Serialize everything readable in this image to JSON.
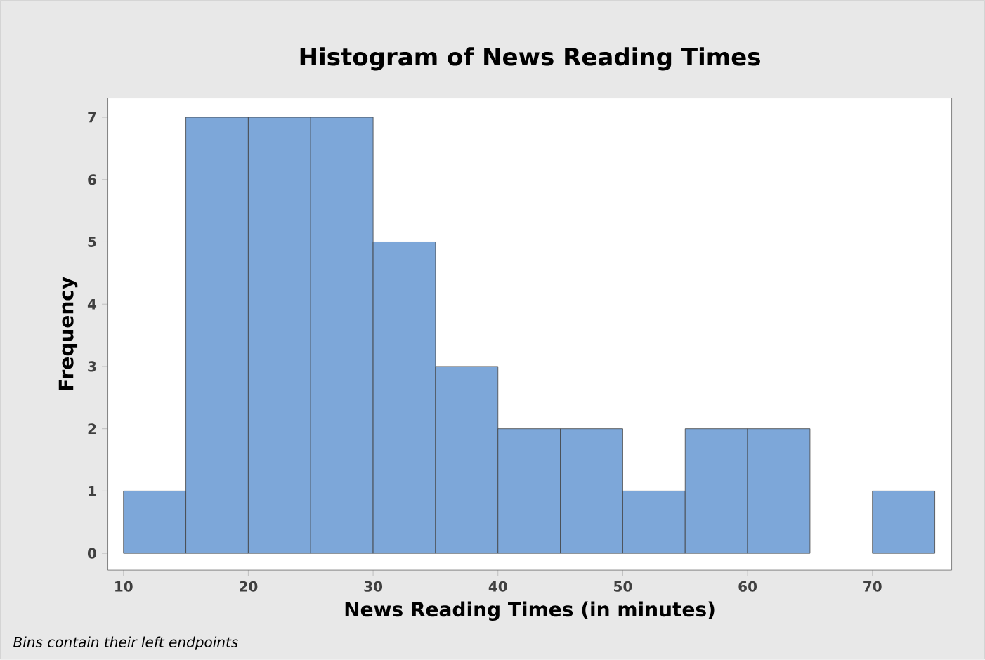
{
  "chart_data": {
    "type": "histogram",
    "title": "Histogram of News Reading Times",
    "xlabel": "News Reading Times (in minutes)",
    "ylabel": "Frequency",
    "bins": [
      10,
      15,
      20,
      25,
      30,
      35,
      40,
      45,
      50,
      55,
      60,
      65,
      70,
      75
    ],
    "values": [
      1,
      7,
      7,
      7,
      5,
      3,
      2,
      2,
      1,
      2,
      2,
      0,
      1
    ],
    "color": "#7da7d9",
    "xlim": [
      8.75,
      76.35
    ],
    "ylim": [
      -0.27,
      7.31
    ],
    "xticks": [
      10,
      20,
      30,
      40,
      50,
      60,
      70
    ],
    "yticks": [
      0,
      1,
      2,
      3,
      4,
      5,
      6,
      7
    ],
    "annotations": [
      "Bins contain their left endpoints"
    ]
  }
}
